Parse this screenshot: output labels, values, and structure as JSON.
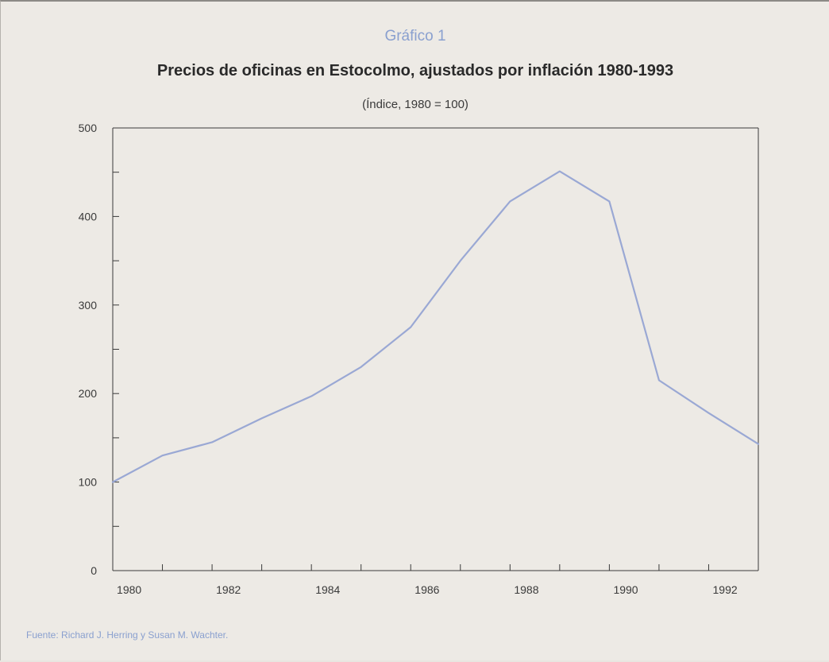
{
  "header": {
    "figure_label": "Gráfico 1",
    "title": "Precios de oficinas en Estocolmo, ajustados por inflación 1980-1993",
    "subtitle": "(Índice, 1980 = 100)"
  },
  "footer": {
    "source": "Fuente: Richard J. Herring y Susan M. Wachter."
  },
  "colors": {
    "line": "#9aa8d4",
    "accent_text": "#8aa0cf",
    "axis": "#3a3a3a"
  },
  "chart_data": {
    "type": "line",
    "title": "Precios de oficinas en Estocolmo, ajustados por inflación 1980-1993",
    "subtitle": "(Índice, 1980 = 100)",
    "xlabel": "",
    "ylabel": "",
    "x": [
      1980,
      1981,
      1982,
      1983,
      1984,
      1985,
      1986,
      1987,
      1988,
      1989,
      1990,
      1991,
      1992,
      1993
    ],
    "series": [
      {
        "values": [
          100,
          130,
          145,
          172,
          197,
          230,
          275,
          350,
          417,
          451,
          417,
          215,
          178,
          143
        ]
      }
    ],
    "xlim": [
      1980,
      1993
    ],
    "ylim": [
      0,
      500
    ],
    "y_ticks": [
      0,
      100,
      200,
      300,
      400,
      500
    ],
    "y_minor_ticks": [
      50,
      150,
      250,
      350,
      450
    ],
    "x_tick_labels": [
      "1980",
      "1982",
      "1984",
      "1986",
      "1988",
      "1990",
      "1992"
    ],
    "x_tick_label_values": [
      1980.33,
      1982.33,
      1984.33,
      1986.33,
      1988.33,
      1990.33,
      1992.33
    ],
    "grid": false,
    "legend": "none"
  }
}
